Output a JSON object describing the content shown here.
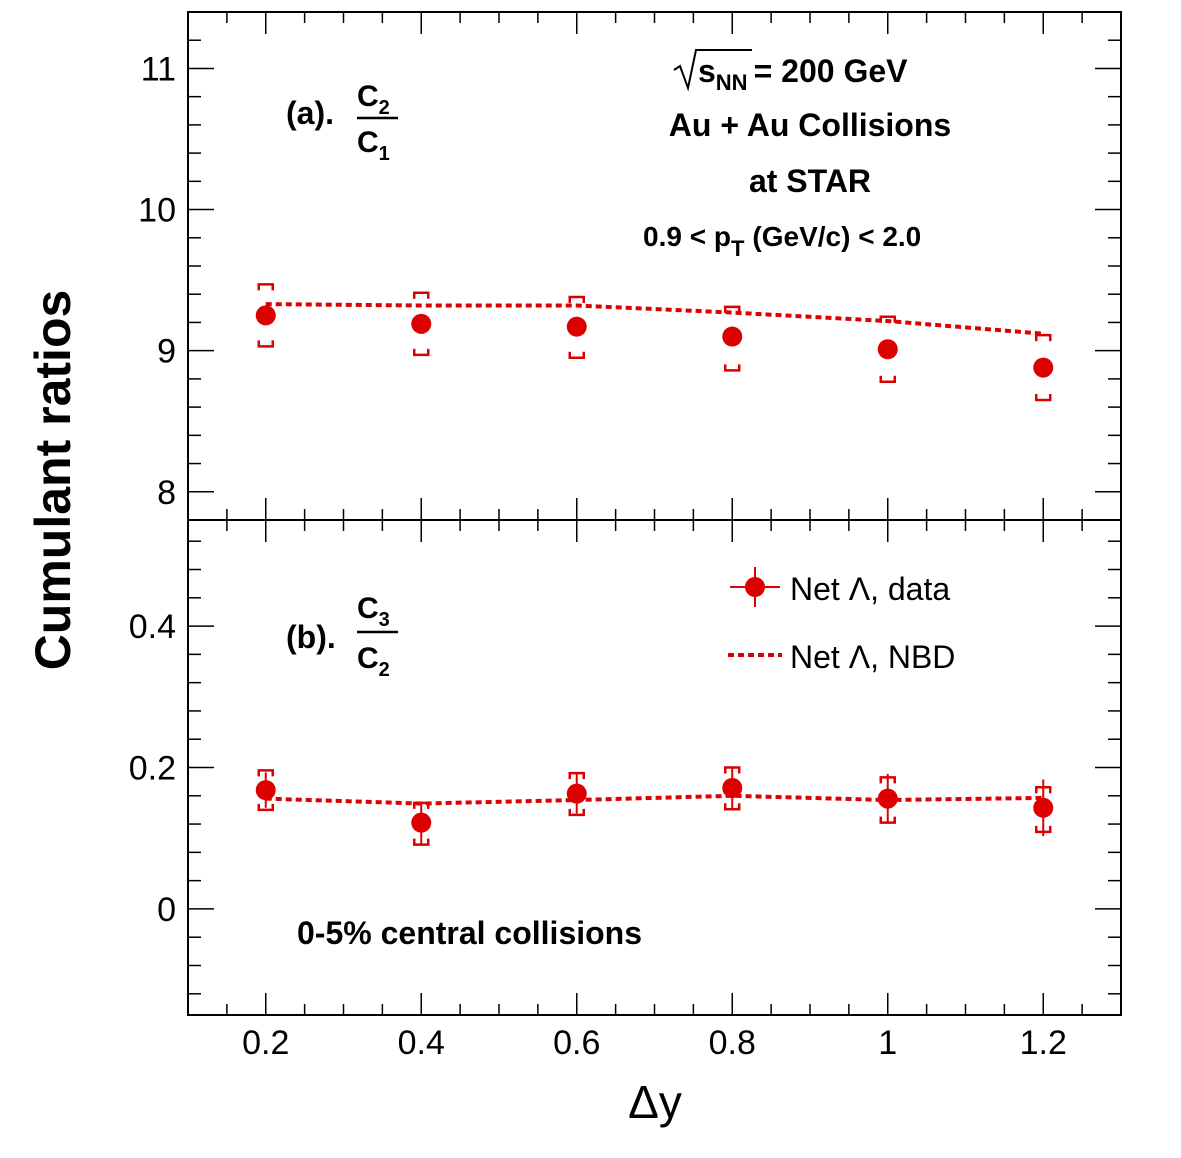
{
  "colors": {
    "data": "#dd0000",
    "axis": "#000000"
  },
  "chart_data": {
    "type": "scatter",
    "xlabel": "Δy",
    "ylabel": "Cumulant ratios",
    "x_ticks": [
      "0.2",
      "0.4",
      "0.6",
      "0.8",
      "1",
      "1.2"
    ],
    "xlim": [
      0.1,
      1.3
    ],
    "legend": {
      "placement": "top-right of lower panel",
      "entries": [
        "Net Λ, data",
        "Net Λ, NBD"
      ]
    },
    "annotations": {
      "energy_prefix": "s",
      "energy_sub": "NN",
      "energy_value": "= 200 GeV",
      "system": "Au + Au Collisions",
      "experiment": "at STAR",
      "pt_left": "0.9 < p",
      "pt_sub": "T",
      "pt_right": "(GeV/c) < 2.0",
      "centrality": "0-5% central collisions"
    },
    "panels": [
      {
        "label": "(a).",
        "ratio_num": "C",
        "ratio_num_sub": "2",
        "ratio_den": "C",
        "ratio_den_sub": "1",
        "ylim": [
          7.8,
          11.4
        ],
        "y_ticks": [
          "8",
          "9",
          "10",
          "11"
        ],
        "data": {
          "name": "Net Λ, data",
          "x": [
            0.2,
            0.4,
            0.6,
            0.8,
            1.0,
            1.2
          ],
          "y": [
            9.25,
            9.19,
            9.17,
            9.1,
            9.01,
            8.88
          ],
          "stat_err": [
            0.01,
            0.01,
            0.01,
            0.01,
            0.01,
            0.01
          ],
          "sys_low": [
            9.03,
            8.97,
            8.95,
            8.86,
            8.78,
            8.65
          ],
          "sys_high": [
            9.47,
            9.41,
            9.38,
            9.31,
            9.24,
            9.11
          ]
        },
        "model": {
          "name": "Net Λ, NBD",
          "x": [
            0.2,
            0.4,
            0.6,
            0.8,
            1.0,
            1.2
          ],
          "y": [
            9.33,
            9.32,
            9.32,
            9.27,
            9.21,
            9.12
          ]
        }
      },
      {
        "label": "(b).",
        "ratio_num": "C",
        "ratio_num_sub": "3",
        "ratio_den": "C",
        "ratio_den_sub": "2",
        "ylim": [
          -0.15,
          0.55
        ],
        "y_ticks": [
          "0",
          "0.2",
          "0.4"
        ],
        "data": {
          "name": "Net Λ, data",
          "x": [
            0.2,
            0.4,
            0.6,
            0.8,
            1.0,
            1.2
          ],
          "y": [
            0.168,
            0.122,
            0.163,
            0.171,
            0.156,
            0.143
          ],
          "stat_err": [
            0.025,
            0.03,
            0.028,
            0.03,
            0.035,
            0.04
          ],
          "sys_low": [
            0.14,
            0.091,
            0.133,
            0.141,
            0.122,
            0.109
          ],
          "sys_high": [
            0.196,
            0.15,
            0.192,
            0.2,
            0.186,
            0.172
          ]
        },
        "model": {
          "name": "Net Λ, NBD",
          "x": [
            0.2,
            0.4,
            0.6,
            0.8,
            1.0,
            1.2
          ],
          "y": [
            0.156,
            0.149,
            0.154,
            0.16,
            0.154,
            0.157
          ]
        }
      }
    ]
  }
}
